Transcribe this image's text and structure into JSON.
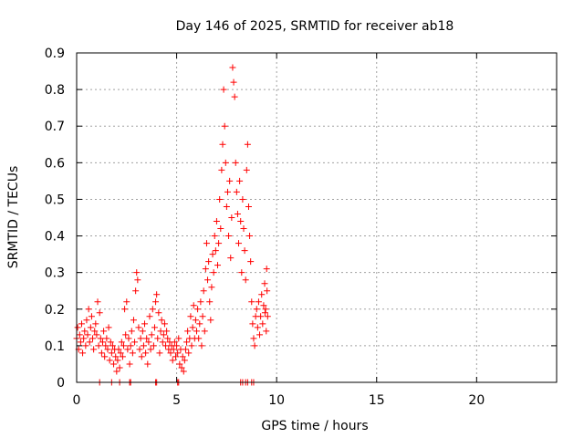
{
  "chart_data": {
    "type": "scatter",
    "title": "Day 146 of 2025, SRMTID for receiver ab18",
    "xlabel": "GPS time / hours",
    "ylabel": "SRMTID / TECUs",
    "xlim": [
      0,
      24
    ],
    "ylim": [
      0,
      0.9
    ],
    "xticks": [
      0,
      5,
      10,
      15,
      20
    ],
    "xtick_labels": [
      "0",
      "5",
      "10",
      "15",
      "20"
    ],
    "yticks": [
      0,
      0.1,
      0.2,
      0.3,
      0.4,
      0.5,
      0.6,
      0.7,
      0.8,
      0.9
    ],
    "ytick_labels": [
      "0",
      "0.1",
      "0.2",
      "0.3",
      "0.4",
      "0.5",
      "0.6",
      "0.7",
      "0.8",
      "0.9"
    ],
    "grid": true,
    "marker": "+",
    "color": "#ff0000",
    "series": [
      {
        "name": "ab18",
        "points": [
          [
            0.0,
            0.12
          ],
          [
            0.05,
            0.15
          ],
          [
            0.1,
            0.09
          ],
          [
            0.15,
            0.13
          ],
          [
            0.2,
            0.11
          ],
          [
            0.25,
            0.16
          ],
          [
            0.3,
            0.08
          ],
          [
            0.35,
            0.12
          ],
          [
            0.4,
            0.14
          ],
          [
            0.45,
            0.1
          ],
          [
            0.5,
            0.17
          ],
          [
            0.55,
            0.13
          ],
          [
            0.6,
            0.2
          ],
          [
            0.65,
            0.11
          ],
          [
            0.7,
            0.15
          ],
          [
            0.75,
            0.18
          ],
          [
            0.8,
            0.12
          ],
          [
            0.85,
            0.09
          ],
          [
            0.9,
            0.14
          ],
          [
            0.95,
            0.16
          ],
          [
            1.0,
            0.13
          ],
          [
            1.05,
            0.22
          ],
          [
            1.1,
            0.1
          ],
          [
            1.15,
            0.19
          ],
          [
            1.2,
            0.12
          ],
          [
            1.25,
            0.08
          ],
          [
            1.3,
            0.11
          ],
          [
            1.35,
            0.14
          ],
          [
            1.4,
            0.07
          ],
          [
            1.45,
            0.1
          ],
          [
            1.5,
            0.12
          ],
          [
            1.55,
            0.09
          ],
          [
            1.6,
            0.15
          ],
          [
            1.65,
            0.06
          ],
          [
            1.7,
            0.11
          ],
          [
            1.75,
            0.08
          ],
          [
            1.8,
            0.1
          ],
          [
            1.85,
            0.05
          ],
          [
            1.9,
            0.09
          ],
          [
            1.95,
            0.07
          ],
          [
            2.0,
            0.03
          ],
          [
            2.05,
            0.06
          ],
          [
            2.1,
            0.09
          ],
          [
            2.15,
            0.04
          ],
          [
            2.2,
            0.08
          ],
          [
            2.25,
            0.11
          ],
          [
            2.3,
            0.07
          ],
          [
            2.35,
            0.1
          ],
          [
            2.4,
            0.2
          ],
          [
            2.45,
            0.13
          ],
          [
            2.5,
            0.22
          ],
          [
            2.55,
            0.09
          ],
          [
            2.6,
            0.12
          ],
          [
            2.65,
            0.05
          ],
          [
            2.7,
            0.1
          ],
          [
            2.75,
            0.14
          ],
          [
            2.8,
            0.08
          ],
          [
            2.85,
            0.17
          ],
          [
            2.9,
            0.11
          ],
          [
            2.95,
            0.25
          ],
          [
            3.0,
            0.3
          ],
          [
            3.05,
            0.28
          ],
          [
            3.1,
            0.15
          ],
          [
            3.15,
            0.09
          ],
          [
            3.2,
            0.12
          ],
          [
            3.25,
            0.07
          ],
          [
            3.3,
            0.14
          ],
          [
            3.35,
            0.1
          ],
          [
            3.4,
            0.16
          ],
          [
            3.45,
            0.08
          ],
          [
            3.5,
            0.12
          ],
          [
            3.55,
            0.05
          ],
          [
            3.6,
            0.11
          ],
          [
            3.65,
            0.18
          ],
          [
            3.7,
            0.09
          ],
          [
            3.75,
            0.13
          ],
          [
            3.8,
            0.2
          ],
          [
            3.85,
            0.1
          ],
          [
            3.9,
            0.15
          ],
          [
            3.95,
            0.22
          ],
          [
            4.0,
            0.24
          ],
          [
            4.05,
            0.12
          ],
          [
            4.1,
            0.19
          ],
          [
            4.15,
            0.08
          ],
          [
            4.2,
            0.14
          ],
          [
            4.25,
            0.17
          ],
          [
            4.3,
            0.11
          ],
          [
            4.35,
            0.13
          ],
          [
            4.4,
            0.16
          ],
          [
            4.45,
            0.1
          ],
          [
            4.5,
            0.14
          ],
          [
            4.55,
            0.12
          ],
          [
            4.6,
            0.09
          ],
          [
            4.65,
            0.11
          ],
          [
            4.7,
            0.08
          ],
          [
            4.75,
            0.1
          ],
          [
            4.8,
            0.06
          ],
          [
            4.85,
            0.09
          ],
          [
            4.9,
            0.11
          ],
          [
            4.95,
            0.07
          ],
          [
            5.0,
            0.1
          ],
          [
            5.05,
            0.08
          ],
          [
            5.1,
            0.12
          ],
          [
            5.15,
            0.05
          ],
          [
            5.2,
            0.09
          ],
          [
            5.25,
            0.04
          ],
          [
            5.3,
            0.07
          ],
          [
            5.35,
            0.03
          ],
          [
            5.4,
            0.06
          ],
          [
            5.45,
            0.09
          ],
          [
            5.5,
            0.11
          ],
          [
            5.55,
            0.14
          ],
          [
            5.6,
            0.08
          ],
          [
            5.65,
            0.12
          ],
          [
            5.7,
            0.18
          ],
          [
            5.75,
            0.1
          ],
          [
            5.8,
            0.15
          ],
          [
            5.85,
            0.21
          ],
          [
            5.9,
            0.12
          ],
          [
            5.95,
            0.17
          ],
          [
            6.0,
            0.14
          ],
          [
            6.05,
            0.2
          ],
          [
            6.1,
            0.12
          ],
          [
            6.15,
            0.16
          ],
          [
            6.2,
            0.22
          ],
          [
            6.25,
            0.1
          ],
          [
            6.3,
            0.18
          ],
          [
            6.35,
            0.25
          ],
          [
            6.4,
            0.14
          ],
          [
            6.45,
            0.31
          ],
          [
            6.5,
            0.38
          ],
          [
            6.55,
            0.28
          ],
          [
            6.6,
            0.33
          ],
          [
            6.65,
            0.22
          ],
          [
            6.7,
            0.17
          ],
          [
            6.75,
            0.26
          ],
          [
            6.8,
            0.35
          ],
          [
            6.85,
            0.3
          ],
          [
            6.9,
            0.4
          ],
          [
            6.95,
            0.36
          ],
          [
            7.0,
            0.44
          ],
          [
            7.05,
            0.32
          ],
          [
            7.1,
            0.38
          ],
          [
            7.15,
            0.5
          ],
          [
            7.2,
            0.42
          ],
          [
            7.25,
            0.58
          ],
          [
            7.3,
            0.65
          ],
          [
            7.35,
            0.8
          ],
          [
            7.4,
            0.7
          ],
          [
            7.45,
            0.6
          ],
          [
            7.5,
            0.48
          ],
          [
            7.55,
            0.52
          ],
          [
            7.6,
            0.4
          ],
          [
            7.65,
            0.55
          ],
          [
            7.7,
            0.34
          ],
          [
            7.75,
            0.45
          ],
          [
            7.8,
            0.86
          ],
          [
            7.85,
            0.82
          ],
          [
            7.9,
            0.78
          ],
          [
            7.95,
            0.6
          ],
          [
            8.0,
            0.52
          ],
          [
            8.05,
            0.46
          ],
          [
            8.1,
            0.38
          ],
          [
            8.15,
            0.55
          ],
          [
            8.2,
            0.44
          ],
          [
            8.25,
            0.3
          ],
          [
            8.3,
            0.5
          ],
          [
            8.35,
            0.42
          ],
          [
            8.4,
            0.36
          ],
          [
            8.45,
            0.28
          ],
          [
            8.5,
            0.58
          ],
          [
            8.55,
            0.65
          ],
          [
            8.6,
            0.48
          ],
          [
            8.65,
            0.4
          ],
          [
            8.7,
            0.33
          ],
          [
            8.75,
            0.22
          ],
          [
            8.8,
            0.16
          ],
          [
            8.85,
            0.12
          ],
          [
            8.9,
            0.1
          ],
          [
            8.95,
            0.18
          ],
          [
            9.0,
            0.2
          ],
          [
            9.05,
            0.15
          ],
          [
            9.1,
            0.22
          ],
          [
            9.15,
            0.13
          ],
          [
            9.2,
            0.18
          ],
          [
            9.25,
            0.24
          ],
          [
            9.3,
            0.16
          ],
          [
            9.35,
            0.21
          ],
          [
            9.4,
            0.27
          ],
          [
            9.45,
            0.2
          ],
          [
            9.5,
            0.31
          ],
          [
            9.52,
            0.25
          ],
          [
            9.55,
            0.18
          ],
          [
            9.48,
            0.14
          ],
          [
            9.42,
            0.19
          ],
          [
            1.15,
            0.0
          ],
          [
            1.75,
            0.0
          ],
          [
            2.15,
            0.0
          ],
          [
            2.65,
            0.0
          ],
          [
            2.7,
            0.0
          ],
          [
            3.95,
            0.0
          ],
          [
            4.0,
            0.0
          ],
          [
            5.05,
            0.0
          ],
          [
            5.1,
            0.0
          ],
          [
            8.2,
            0.0
          ],
          [
            8.3,
            0.0
          ],
          [
            8.45,
            0.0
          ],
          [
            8.55,
            0.0
          ],
          [
            8.75,
            0.0
          ],
          [
            8.85,
            0.0
          ]
        ]
      }
    ]
  }
}
